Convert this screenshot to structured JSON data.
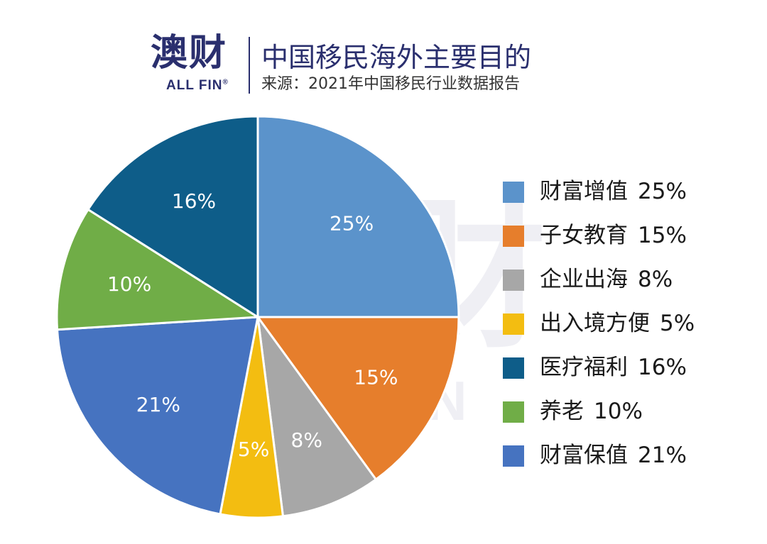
{
  "header": {
    "logo_cn": "澳财",
    "logo_en": "ALL FIN",
    "logo_reg": "®",
    "title": "中国移民海外主要目的",
    "subtitle": "来源：2021年中国移民行业数据报告"
  },
  "chart_data": {
    "type": "pie",
    "title": "中国移民海外主要目的",
    "subtitle": "来源：2021年中国移民行业数据报告",
    "categories": [
      "财富增值",
      "子女教育",
      "企业出海",
      "出入境方便",
      "医疗福利",
      "养老",
      "财富保值"
    ],
    "values": [
      25,
      15,
      8,
      5,
      16,
      10,
      21
    ],
    "unit": "%",
    "legend_position": "right",
    "colors": [
      "#5b93cb",
      "#e67e2c",
      "#a7a7a7",
      "#f3bd11",
      "#0e5d89",
      "#70ad47",
      "#4673c0"
    ],
    "slice_order_clockwise_from_top": [
      "财富增值",
      "子女教育",
      "企业出海",
      "出入境方便",
      "财富保值",
      "养老",
      "医疗福利"
    ],
    "slice_label_values": [
      "25%",
      "15%",
      "8%",
      "5%",
      "16%",
      "10%",
      "21%"
    ],
    "legend": [
      {
        "label": "财富增值",
        "value": "25%"
      },
      {
        "label": "子女教育",
        "value": "15%"
      },
      {
        "label": "企业出海",
        "value": "8%"
      },
      {
        "label": "出入境方便",
        "value": "5%"
      },
      {
        "label": "医疗福利",
        "value": "16%"
      },
      {
        "label": "养老",
        "value": "10%"
      },
      {
        "label": "财富保值",
        "value": "21%"
      }
    ]
  }
}
